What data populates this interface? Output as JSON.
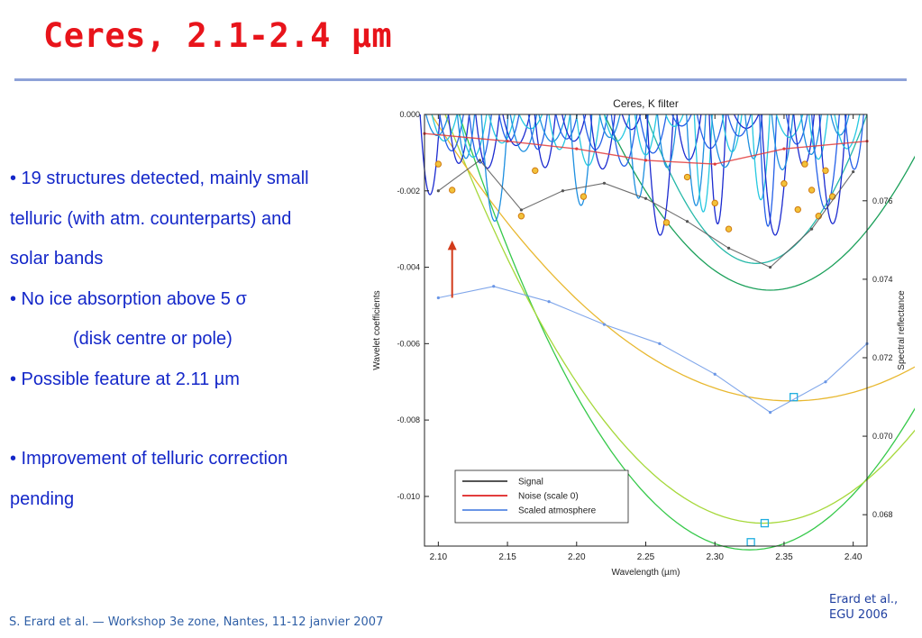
{
  "slide": {
    "title": "Ceres, 2.1-2.4 µm",
    "bullets": [
      "• 19 structures detected, mainly small",
      "telluric (with atm. counterparts) and",
      "solar bands",
      "• No ice absorption above 5 σ",
      "(disk centre or pole)",
      "• Possible feature at 2.11 µm",
      "• Improvement of telluric correction",
      "pending"
    ],
    "footer": "S. Erard et al. — Workshop 3e zone, Nantes, 11-12 janvier 2007",
    "credit_line1": "Erard et al.,",
    "credit_line2": "EGU 2006"
  },
  "colors": {
    "title": "#e8141b",
    "bullet_text": "#1427c9",
    "rule": "#8ea2d8",
    "signal": "#555555",
    "noise": "#e23c3c",
    "atmosphere": "#6a96e6",
    "arrow": "#d23a1a"
  },
  "chart_data": {
    "type": "line",
    "title": "Ceres, K filter",
    "xlabel": "Wavelength (µm)",
    "ylabel_left": "Wavelet coefficients",
    "ylabel_right": "Spectral reflectance",
    "xlim": [
      2.09,
      2.41
    ],
    "ylim_left": [
      -0.0113,
      0.0
    ],
    "ylim_right": [
      0.0672,
      0.0782
    ],
    "x_ticks": [
      "2.10",
      "2.15",
      "2.20",
      "2.25",
      "2.30",
      "2.35",
      "2.40"
    ],
    "y_ticks_left": [
      "0.000",
      "-0.002",
      "-0.004",
      "-0.006",
      "-0.008",
      "-0.010"
    ],
    "y_ticks_right": [
      "0.076",
      "0.074",
      "0.072",
      "0.070",
      "0.068"
    ],
    "legend": [
      "Signal",
      "Noise (scale 0)",
      "Scaled atmosphere"
    ],
    "legend_position": "bottom-center",
    "grid": false,
    "annotations": [
      {
        "type": "arrow",
        "x": 2.11,
        "direction": "up"
      }
    ],
    "series": [
      {
        "name": "Signal",
        "axis": "left",
        "x": [
          2.1,
          2.13,
          2.16,
          2.19,
          2.22,
          2.25,
          2.28,
          2.31,
          2.34,
          2.37,
          2.4
        ],
        "y": [
          -0.002,
          -0.0012,
          -0.0025,
          -0.002,
          -0.0018,
          -0.0022,
          -0.0028,
          -0.0035,
          -0.004,
          -0.003,
          -0.0015
        ]
      },
      {
        "name": "Noise (scale 0)",
        "axis": "left",
        "x": [
          2.09,
          2.15,
          2.2,
          2.25,
          2.3,
          2.35,
          2.41
        ],
        "y": [
          -0.0005,
          -0.0007,
          -0.0009,
          -0.0012,
          -0.0013,
          -0.0009,
          -0.0007
        ]
      },
      {
        "name": "Scaled atmosphere",
        "axis": "left",
        "x": [
          2.1,
          2.14,
          2.18,
          2.22,
          2.26,
          2.3,
          2.34,
          2.38,
          2.41
        ],
        "y": [
          -0.0048,
          -0.0045,
          -0.0049,
          -0.0055,
          -0.006,
          -0.0068,
          -0.0078,
          -0.007,
          -0.006
        ]
      }
    ]
  }
}
